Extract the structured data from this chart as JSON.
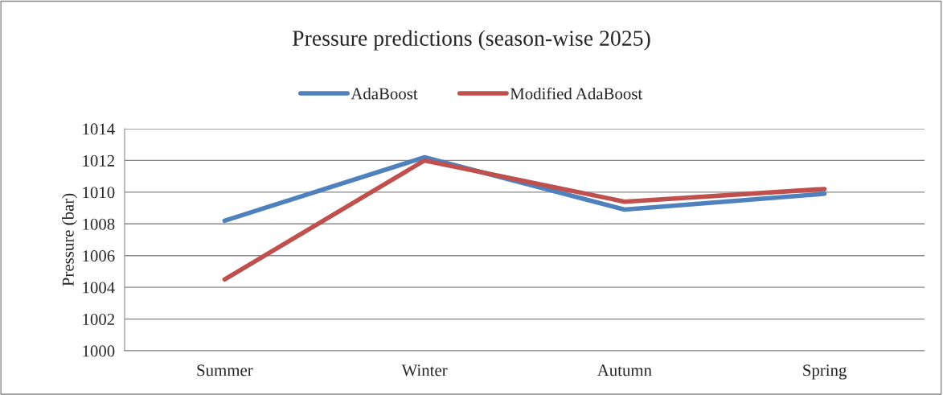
{
  "chart_data": {
    "type": "line",
    "title": "Pressure predictions (season-wise 2025)",
    "ylabel": "Pressure (bar)",
    "categories": [
      "Summer",
      "Winter",
      "Autumn",
      "Spring"
    ],
    "series": [
      {
        "name": "AdaBoost",
        "color": "#4f81bd",
        "values": [
          1008.2,
          1012.2,
          1008.9,
          1009.9
        ]
      },
      {
        "name": "Modified AdaBoost",
        "color": "#c0504d",
        "values": [
          1004.5,
          1012.0,
          1009.4,
          1010.2
        ]
      }
    ],
    "ylim": [
      1000,
      1014
    ],
    "yticks": [
      1000,
      1002,
      1004,
      1006,
      1008,
      1010,
      1012,
      1014
    ],
    "grid": "y",
    "legend": "top",
    "marker": "none",
    "line_style": "solid"
  }
}
